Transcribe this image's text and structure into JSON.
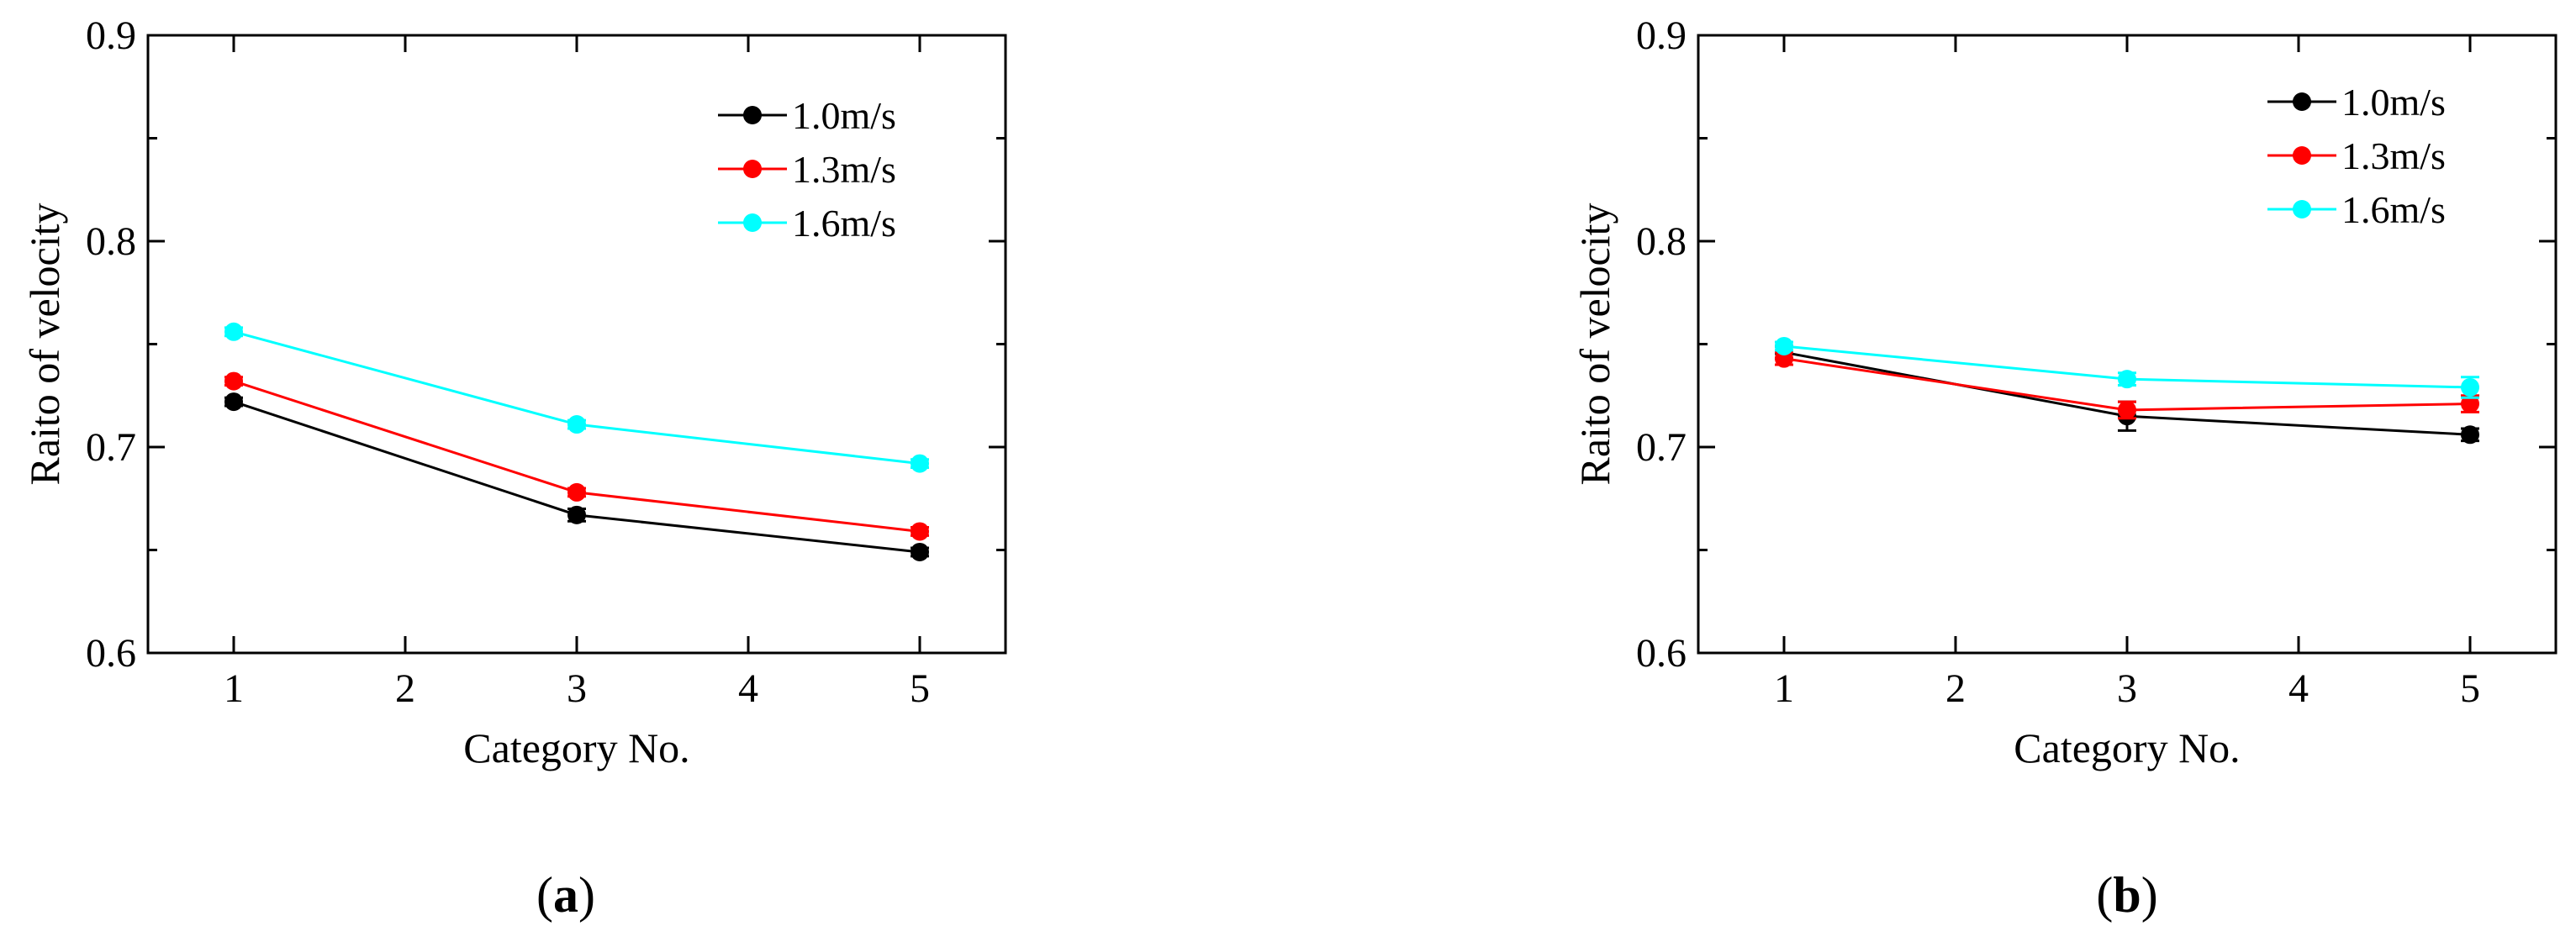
{
  "chart_data": [
    {
      "type": "line",
      "panel_label": "a",
      "xlabel": "Category No.",
      "ylabel": "Raito of velocity",
      "xlim": [
        0.5,
        5.5
      ],
      "ylim": [
        0.6,
        0.9
      ],
      "xticks": [
        1,
        2,
        3,
        4,
        5
      ],
      "yticks": [
        0.6,
        0.7,
        0.8,
        0.9
      ],
      "ytick_labels": [
        "0.6",
        "0.7",
        "0.8",
        "0.9"
      ],
      "grid": false,
      "legend_position": "top-right",
      "series": [
        {
          "name": "1.0m/s",
          "color": "#000000",
          "x": [
            1,
            3,
            5
          ],
          "y": [
            0.722,
            0.667,
            0.649
          ],
          "err": [
            0.002,
            0.003,
            0.002
          ]
        },
        {
          "name": "1.3m/s",
          "color": "#ff0000",
          "x": [
            1,
            3,
            5
          ],
          "y": [
            0.732,
            0.678,
            0.659
          ],
          "err": [
            0.002,
            0.002,
            0.002
          ]
        },
        {
          "name": "1.6m/s",
          "color": "#00ffff",
          "x": [
            1,
            3,
            5
          ],
          "y": [
            0.756,
            0.711,
            0.692
          ],
          "err": [
            0.002,
            0.002,
            0.002
          ]
        }
      ]
    },
    {
      "type": "line",
      "panel_label": "b",
      "xlabel": "Category No.",
      "ylabel": "Raito of velocity",
      "xlim": [
        0.5,
        5.5
      ],
      "ylim": [
        0.6,
        0.9
      ],
      "xticks": [
        1,
        2,
        3,
        4,
        5
      ],
      "yticks": [
        0.6,
        0.7,
        0.8,
        0.9
      ],
      "ytick_labels": [
        "0.6",
        "0.7",
        "0.8",
        "0.9"
      ],
      "grid": false,
      "legend_position": "top-right",
      "series": [
        {
          "name": "1.0m/s",
          "color": "#000000",
          "x": [
            1,
            3,
            5
          ],
          "y": [
            0.746,
            0.715,
            0.706
          ],
          "err": [
            0.003,
            0.007,
            0.003
          ]
        },
        {
          "name": "1.3m/s",
          "color": "#ff0000",
          "x": [
            1,
            3,
            5
          ],
          "y": [
            0.743,
            0.718,
            0.721
          ],
          "err": [
            0.003,
            0.004,
            0.004
          ]
        },
        {
          "name": "1.6m/s",
          "color": "#00ffff",
          "x": [
            1,
            3,
            5
          ],
          "y": [
            0.749,
            0.733,
            0.729
          ],
          "err": [
            0.002,
            0.003,
            0.005
          ]
        }
      ]
    }
  ]
}
